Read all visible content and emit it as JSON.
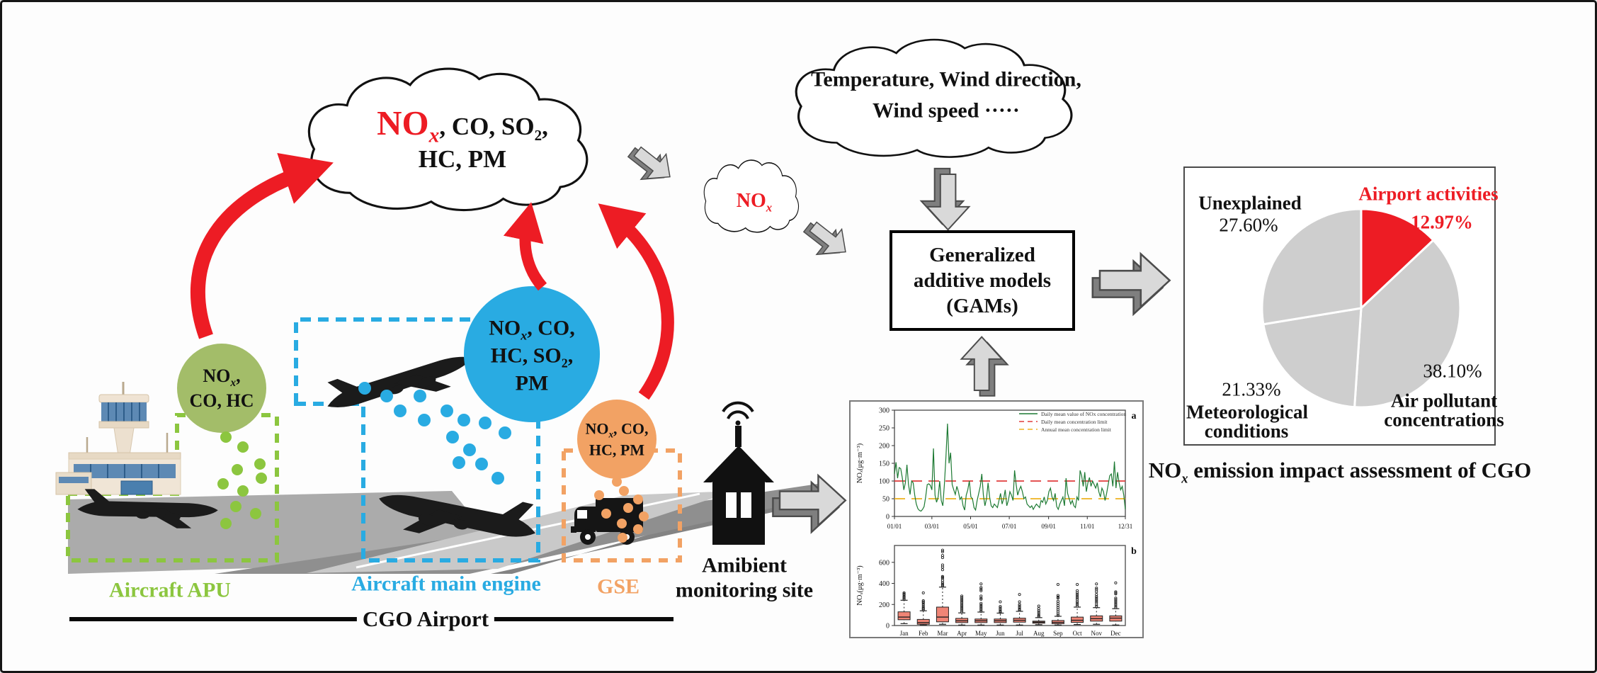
{
  "palette": {
    "red": "#ed1c24",
    "green_line": "#8cc63f",
    "green_circle": "#a3bd69",
    "blue": "#29abe2",
    "orange": "#f2a264",
    "pie_gray": "#cecece",
    "arrow_face": "#d9d9d9",
    "arrow_side": "#7f7f7f"
  },
  "cloud_pollutants": {
    "no": "NO",
    "x": "x",
    "after_no": ", CO, SO",
    "sub2": "2",
    "comma": ",",
    "line2": "HC, PM"
  },
  "cloud_nox": {
    "no": "NO",
    "x": "x"
  },
  "cloud_weather": {
    "line1": "Temperature,  Wind direction,",
    "line2": "Wind speed ·····"
  },
  "gams_box": {
    "line1": "Generalized",
    "line2": "additive models",
    "line3": "(GAMs)"
  },
  "sources": {
    "apu": {
      "label": "Aircraft APU",
      "c_no": "NO",
      "c_x": "x",
      "c_comma": ",",
      "c_line2": "CO, HC"
    },
    "main_engine": {
      "label": "Aircraft main engine",
      "c_no": "NO",
      "c_x": "x",
      "c_rest": ", CO,",
      "c_l2a": "HC, SO",
      "c_l2sub": "2",
      "c_l2c": ",",
      "c_l3": "PM"
    },
    "gse": {
      "label": "GSE",
      "c_no": "NO",
      "c_x": "x",
      "c_rest": ", CO,",
      "c_line2": "HC, PM"
    }
  },
  "airport_line_label": "CGO Airport",
  "monitoring_site": {
    "line1": "Amibient",
    "line2": "monitoring site"
  },
  "result_caption": {
    "no": "NO",
    "x": "x",
    "rest": " emission impact assessment of CGO"
  },
  "chart_data": [
    {
      "id": "daily_nox_series",
      "type": "line",
      "panel_label": "a",
      "ylabel": "NOₓ(μg·m⁻³)",
      "x_ticks": [
        "01/01",
        "03/01",
        "05/01",
        "07/01",
        "09/01",
        "11/01",
        "12/31"
      ],
      "x_tick_days": [
        0,
        59,
        120,
        181,
        243,
        304,
        364
      ],
      "y_ticks": [
        0,
        50,
        100,
        150,
        200,
        250,
        300
      ],
      "ylim": [
        0,
        300
      ],
      "days_total": 364,
      "grid": false,
      "legend_position": "top-right",
      "legend": [
        {
          "label": "Daily mean value of NOx concentration",
          "color": "#1d7a33",
          "dash": "solid"
        },
        {
          "label": "Daily mean concentration limit",
          "color": "#e03c3c",
          "dash": "dashed",
          "ref_y": 100
        },
        {
          "label": "Annual mean concentration limit",
          "color": "#eeb320",
          "dash": "dashed",
          "ref_y": 50
        }
      ],
      "values": [
        120,
        153,
        108,
        138,
        135,
        110,
        75,
        95,
        146,
        90,
        62,
        100,
        95,
        60,
        35,
        22,
        17,
        15,
        20,
        28,
        55,
        90,
        92,
        88,
        75,
        192,
        60,
        40,
        55,
        100,
        45,
        30,
        90,
        168,
        262,
        150,
        180,
        90,
        75,
        62,
        85,
        70,
        48,
        55,
        30,
        18,
        60,
        75,
        100,
        55,
        50,
        25,
        18,
        45,
        65,
        85,
        120,
        60,
        30,
        50,
        95,
        55,
        30,
        25,
        35,
        30,
        25,
        45,
        65,
        35,
        50,
        75,
        30,
        45,
        70,
        60,
        45,
        130,
        90,
        60,
        75,
        85,
        70,
        50,
        55,
        35,
        30,
        25,
        30,
        20,
        28,
        35,
        30,
        25,
        45,
        40,
        55,
        35,
        45,
        70,
        80,
        55,
        45,
        65,
        28,
        20,
        35,
        45,
        55,
        30,
        108,
        65,
        50,
        35,
        45,
        30,
        25,
        55,
        45,
        130,
        115,
        85,
        125,
        70,
        95,
        110,
        85,
        100,
        90,
        80,
        95,
        70,
        55,
        80,
        70,
        45,
        65,
        90,
        115,
        120,
        85,
        155,
        80,
        125,
        95,
        75,
        85,
        60,
        20
      ]
    },
    {
      "id": "monthly_nox_box",
      "type": "box",
      "panel_label": "b",
      "ylabel": "NOₓ(μg·m⁻³)",
      "y_ticks": [
        0,
        200,
        400,
        600
      ],
      "ylim": [
        0,
        760
      ],
      "categories": [
        "Jan",
        "Feb",
        "Mar",
        "Apr",
        "May",
        "Jun",
        "Jul",
        "Aug",
        "Sep",
        "Oct",
        "Nov",
        "Dec"
      ],
      "box_color": "#ef8576",
      "boxes": [
        {
          "lo": 18,
          "q1": 55,
          "med": 80,
          "q3": 130,
          "hi": 240,
          "outliers": [
            250,
            260,
            270,
            280,
            295,
            300,
            310
          ]
        },
        {
          "lo": 5,
          "q1": 12,
          "med": 28,
          "q3": 58,
          "hi": 140,
          "outliers": [
            150,
            160,
            170,
            185,
            200,
            215,
            225,
            235,
            310
          ]
        },
        {
          "lo": 12,
          "q1": 35,
          "med": 80,
          "q3": 175,
          "hi": 365,
          "outliers": [
            375,
            385,
            395,
            410,
            430,
            450,
            455,
            465,
            530,
            555,
            575,
            645,
            665,
            700,
            715
          ]
        },
        {
          "lo": 5,
          "q1": 28,
          "med": 45,
          "q3": 68,
          "hi": 120,
          "outliers": [
            130,
            145,
            160,
            175,
            190,
            205,
            220,
            235,
            250,
            265,
            280
          ]
        },
        {
          "lo": 5,
          "q1": 28,
          "med": 45,
          "q3": 62,
          "hi": 128,
          "outliers": [
            135,
            150,
            165,
            180,
            195,
            210,
            250,
            260,
            280,
            330,
            345,
            360,
            395
          ]
        },
        {
          "lo": 5,
          "q1": 28,
          "med": 45,
          "q3": 62,
          "hi": 118,
          "outliers": [
            125,
            135,
            150,
            165,
            180,
            225
          ]
        },
        {
          "lo": 5,
          "q1": 32,
          "med": 50,
          "q3": 70,
          "hi": 135,
          "outliers": [
            145,
            155,
            170,
            185,
            200,
            225,
            295
          ]
        },
        {
          "lo": 8,
          "q1": 22,
          "med": 32,
          "q3": 42,
          "hi": 75,
          "outliers": [
            85,
            95,
            110,
            125,
            140,
            160,
            185
          ]
        },
        {
          "lo": 5,
          "q1": 18,
          "med": 30,
          "q3": 48,
          "hi": 88,
          "outliers": [
            95,
            110,
            130,
            150,
            170,
            190,
            210,
            230,
            260,
            270,
            285,
            390
          ]
        },
        {
          "lo": 10,
          "q1": 30,
          "med": 50,
          "q3": 80,
          "hi": 175,
          "outliers": [
            185,
            200,
            215,
            230,
            250,
            265,
            280,
            295,
            310,
            330,
            390
          ]
        },
        {
          "lo": 12,
          "q1": 42,
          "med": 65,
          "q3": 92,
          "hi": 170,
          "outliers": [
            180,
            195,
            215,
            230,
            245,
            260,
            275,
            295,
            320,
            340,
            355,
            395
          ]
        },
        {
          "lo": 5,
          "q1": 42,
          "med": 70,
          "q3": 92,
          "hi": 160,
          "outliers": [
            170,
            185,
            200,
            215,
            230,
            245,
            260,
            300,
            310,
            320,
            405
          ]
        }
      ]
    },
    {
      "id": "attribution_pie",
      "type": "pie",
      "start_angle_deg": -90,
      "direction": "clockwise",
      "slices": [
        {
          "label": "Airport activities",
          "value": 12.97,
          "pct_label": "12.97%",
          "color": "#ed1c24"
        },
        {
          "label_line1": "Air pollutant",
          "label_line2": "concentrations",
          "value": 38.1,
          "pct_label": "38.10%",
          "color": "#cecece"
        },
        {
          "label_line1": "Meteorological",
          "label_line2": "conditions",
          "value": 21.33,
          "pct_label": "21.33%",
          "color": "#cecece"
        },
        {
          "label": "Unexplained",
          "value": 27.6,
          "pct_label": "27.60%",
          "color": "#cecece"
        }
      ]
    }
  ]
}
